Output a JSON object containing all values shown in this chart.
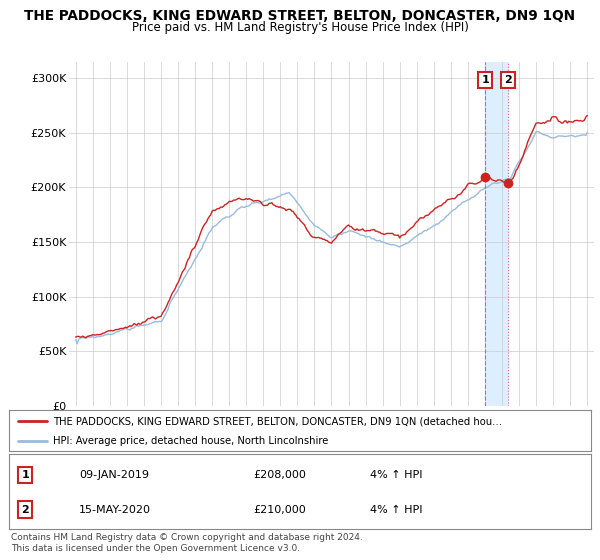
{
  "title": "THE PADDOCKS, KING EDWARD STREET, BELTON, DONCASTER, DN9 1QN",
  "subtitle": "Price paid vs. HM Land Registry's House Price Index (HPI)",
  "ylabel_ticks": [
    "£0",
    "£50K",
    "£100K",
    "£150K",
    "£200K",
    "£250K",
    "£300K"
  ],
  "ytick_values": [
    0,
    50000,
    100000,
    150000,
    200000,
    250000,
    300000
  ],
  "ylim": [
    0,
    315000
  ],
  "xlim_left": 1994.6,
  "xlim_right": 2025.4,
  "marker1_year": 2019.03,
  "marker2_year": 2020.38,
  "marker1_value": 208000,
  "marker2_value": 210000,
  "legend_line1": "THE PADDOCKS, KING EDWARD STREET, BELTON, DONCASTER, DN9 1QN (detached hou…",
  "legend_line2": "HPI: Average price, detached house, North Lincolnshire",
  "table_row1": [
    "1",
    "09-JAN-2019",
    "£208,000",
    "4% ↑ HPI"
  ],
  "table_row2": [
    "2",
    "15-MAY-2020",
    "£210,000",
    "4% ↑ HPI"
  ],
  "footer": "Contains HM Land Registry data © Crown copyright and database right 2024.\nThis data is licensed under the Open Government Licence v3.0.",
  "price_color": "#cc2222",
  "hpi_color": "#99bbdd",
  "span_color": "#ddeeff",
  "background_color": "#ffffff",
  "grid_color": "#cccccc",
  "box_edge_color": "#cc2222"
}
